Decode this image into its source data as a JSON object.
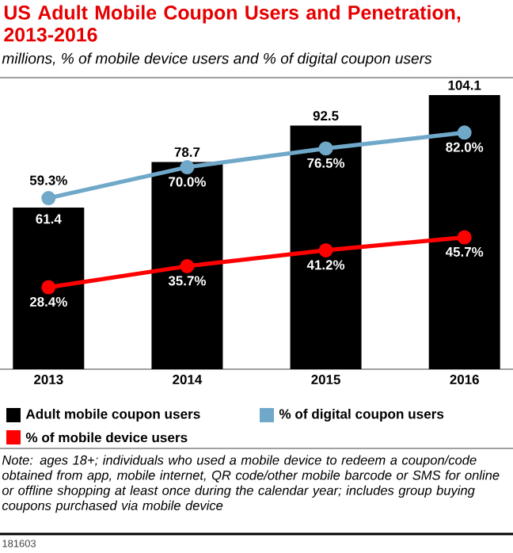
{
  "chart_data": {
    "type": "bar",
    "title": "US Adult Mobile Coupon Users and Penetration, 2013-2016",
    "subtitle": "millions, % of mobile device users and % of digital coupon users",
    "categories": [
      "2013",
      "2014",
      "2015",
      "2016"
    ],
    "series": [
      {
        "name": "Adult mobile coupon users",
        "color": "#000000",
        "values": [
          61.4,
          78.7,
          92.5,
          104.1
        ],
        "value_labels": [
          "61.4",
          "78.7",
          "92.5",
          "104.1"
        ]
      },
      {
        "name": "% of digital coupon users",
        "type": "line",
        "axis": "y2",
        "color": "#6fa8c9",
        "values": [
          59.3,
          70.0,
          76.5,
          82.0
        ],
        "value_labels": [
          "59.3%",
          "70.0%",
          "76.5%",
          "82.0%"
        ]
      },
      {
        "name": "% of mobile device users",
        "type": "line",
        "axis": "y2",
        "color": "#ff0000",
        "values": [
          28.4,
          35.7,
          41.2,
          45.7
        ],
        "value_labels": [
          "28.4%",
          "35.7%",
          "41.2%",
          "45.7%"
        ]
      }
    ],
    "ylim": [
      0,
      104.1
    ],
    "y2lim": [
      0,
      95
    ],
    "legend": "bottom",
    "marker": "circle",
    "tick_labels": "x",
    "annotations": [
      "Note: ages 18+; individuals who used a mobile device to redeem a coupon/code obtained from app, mobile internet, QR code/other mobile barcode or SMS for online or offline shopping at least once during the calendar year; includes group buying coupons purchased via mobile device",
      "181603"
    ]
  }
}
